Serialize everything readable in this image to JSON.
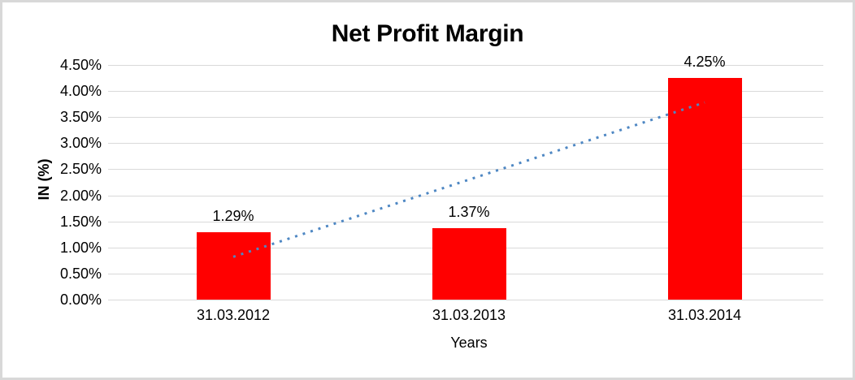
{
  "window": {
    "background": "#FFFFFF",
    "border_color": "#D8D8D8"
  },
  "chart_data": {
    "type": "bar",
    "title": "Net Profit Margin",
    "xlabel": "Years",
    "ylabel": "IN (%)",
    "categories": [
      "31.03.2012",
      "31.03.2013",
      "31.03.2014"
    ],
    "values": [
      1.29,
      1.37,
      4.25
    ],
    "data_labels": [
      "1.29%",
      "1.37%",
      "4.25%"
    ],
    "ylim": [
      0,
      4.5
    ],
    "ytick_step": 0.5,
    "ytick_labels": [
      "0.00%",
      "0.50%",
      "1.00%",
      "1.50%",
      "2.00%",
      "2.50%",
      "3.00%",
      "3.50%",
      "4.00%",
      "4.50%"
    ],
    "grid": true,
    "legend": "none",
    "bar_color": "#FF0000",
    "gridline_color": "#D9D9D9",
    "trendline": {
      "type": "linear",
      "style": "dotted",
      "color": "#4E87C3",
      "start_value": 0.82,
      "end_value": 3.78
    }
  }
}
